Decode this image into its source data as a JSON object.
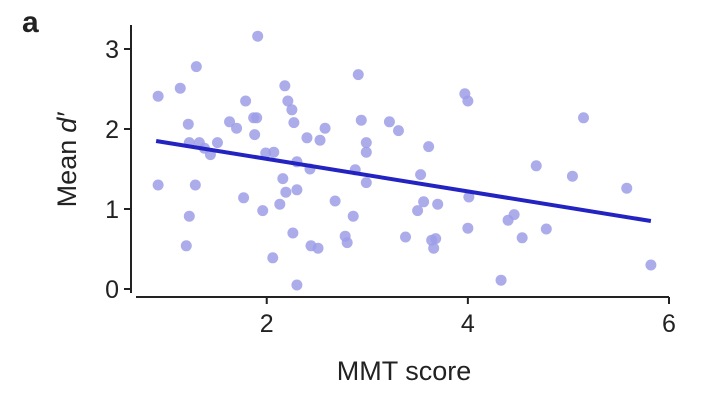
{
  "chart_data": {
    "type": "scatter",
    "panel_label": "a",
    "xlabel": "MMT score",
    "ylabel": [
      "Mean",
      "d′"
    ],
    "xlim": [
      0.7,
      6
    ],
    "ylim": [
      -0.05,
      3.3
    ],
    "xticks": [
      2,
      4,
      6
    ],
    "yticks": [
      0,
      1,
      2,
      3
    ],
    "point_color": "#9d9de8",
    "line_color": "#2323c2",
    "x": [
      0.92,
      0.92,
      1.14,
      1.2,
      1.23,
      1.22,
      1.23,
      1.3,
      1.29,
      1.33,
      1.38,
      1.44,
      1.51,
      1.63,
      1.7,
      1.77,
      1.79,
      1.87,
      1.9,
      1.91,
      1.88,
      1.96,
      1.99,
      2.07,
      2.06,
      2.13,
      2.16,
      2.18,
      2.19,
      2.21,
      2.25,
      2.26,
      2.27,
      2.3,
      2.3,
      2.3,
      2.4,
      2.43,
      2.44,
      2.51,
      2.53,
      2.58,
      2.68,
      2.78,
      2.8,
      2.86,
      2.88,
      2.91,
      2.94,
      2.99,
      2.99,
      2.99,
      3.22,
      3.31,
      3.38,
      3.5,
      3.53,
      3.56,
      3.61,
      3.64,
      3.66,
      3.68,
      3.7,
      3.97,
      4.0,
      4.01,
      4.0,
      4.33,
      4.4,
      4.46,
      4.54,
      4.68,
      4.78,
      5.04,
      5.15,
      5.58,
      5.82
    ],
    "y": [
      2.41,
      1.3,
      2.51,
      0.54,
      0.91,
      2.06,
      1.83,
      2.78,
      1.3,
      1.83,
      1.76,
      1.68,
      1.83,
      2.09,
      2.01,
      1.14,
      2.35,
      2.14,
      2.14,
      3.16,
      1.93,
      0.98,
      1.7,
      1.71,
      0.39,
      1.06,
      1.38,
      2.54,
      1.21,
      2.35,
      2.24,
      0.7,
      2.08,
      1.24,
      1.59,
      0.05,
      1.89,
      1.5,
      0.54,
      0.51,
      1.86,
      2.01,
      1.1,
      0.66,
      0.58,
      0.91,
      1.49,
      2.68,
      2.11,
      1.83,
      1.71,
      1.33,
      2.09,
      1.98,
      0.65,
      0.98,
      1.43,
      1.09,
      1.78,
      0.61,
      0.51,
      0.63,
      1.06,
      2.44,
      2.35,
      1.15,
      0.76,
      0.11,
      0.86,
      0.93,
      0.64,
      1.54,
      0.75,
      1.41,
      2.14,
      1.26,
      0.3
    ],
    "fit": {
      "x": [
        0.9,
        5.82
      ],
      "y": [
        1.85,
        0.85
      ]
    }
  }
}
